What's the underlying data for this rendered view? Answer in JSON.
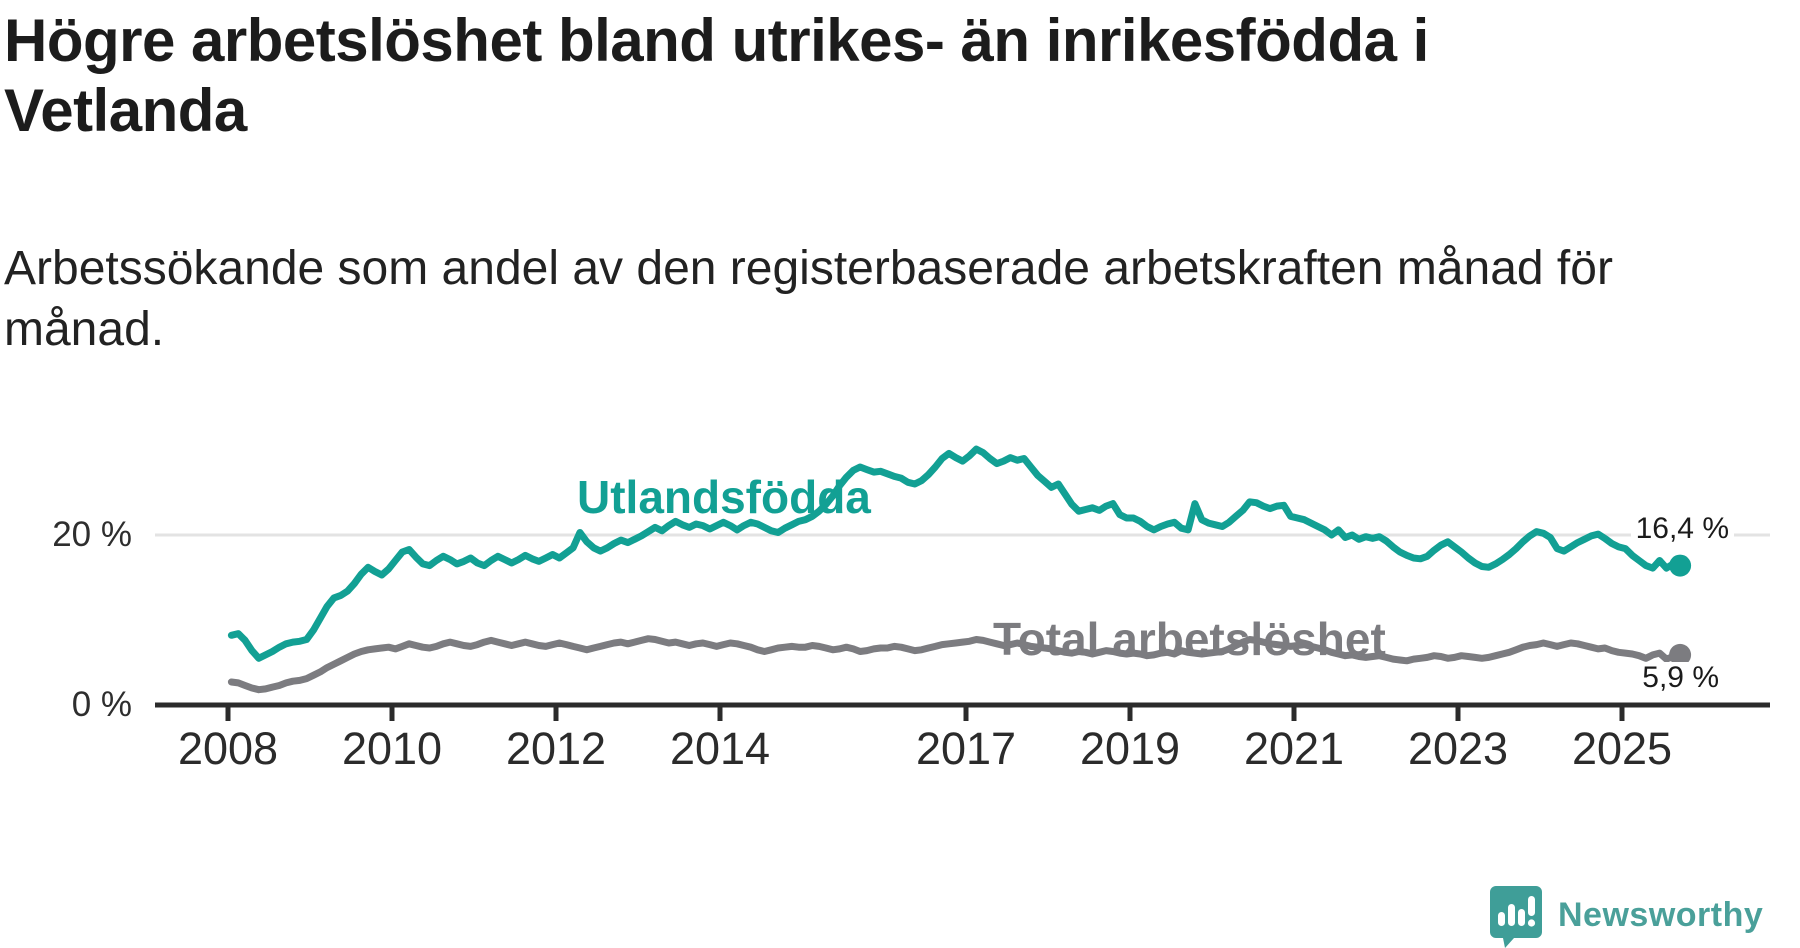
{
  "header": {
    "title_lines": [
      "Högre arbetslöshet bland utrikes- än inrikesfödda i",
      "Vetlanda"
    ],
    "subtitle_lines": [
      "Arbetssökande som andel av den registerbaserade arbetskraften månad för",
      "månad."
    ]
  },
  "colors": {
    "teal": "#12a094",
    "gray": "#7c7c80",
    "near_black": "#1c1c1c",
    "axis": "#2b2b2b",
    "gridline": "#e3e3e3",
    "logo_teal": "#4aa09a"
  },
  "branding": {
    "logo_text": "Newsworthy",
    "icon": "newsworthy-speech-bubble-bar-chart-icon"
  },
  "chart_data": {
    "type": "line",
    "title": "Högre arbetslöshet bland utrikes- än inrikesfödda i Vetlanda",
    "subtitle": "Arbetssökande som andel av den registerbaserade arbetskraften månad för månad.",
    "x_start": "2008-01",
    "x_end": "2025-09",
    "x_ticks": [
      2008,
      2010,
      2012,
      2014,
      2017,
      2019,
      2021,
      2023,
      2025
    ],
    "x_tick_labels": [
      "2008",
      "2010",
      "2012",
      "2014",
      "2017",
      "2019",
      "2021",
      "2023",
      "2025"
    ],
    "y_ticks": [
      {
        "label": "20 %",
        "value": 20
      },
      {
        "label": "0 %",
        "value": 0
      }
    ],
    "ylim": [
      0,
      33
    ],
    "grid": "horizontal gridline at 20% only",
    "legend_position": "labels next to lines",
    "series": [
      {
        "name": "Utlandsfödda",
        "color": "#12a094",
        "end_label": "16,4 %",
        "final_value": 16.4,
        "values": [
          8.2,
          8.4,
          7.6,
          6.4,
          5.5,
          5.9,
          6.3,
          6.8,
          7.2,
          7.4,
          7.5,
          7.7,
          8.8,
          10.2,
          11.6,
          12.6,
          12.9,
          13.4,
          14.3,
          15.4,
          16.2,
          15.7,
          15.3,
          16.0,
          17.0,
          18.0,
          18.3,
          17.4,
          16.6,
          16.4,
          17.0,
          17.5,
          17.1,
          16.6,
          16.9,
          17.3,
          16.7,
          16.4,
          17.0,
          17.5,
          17.1,
          16.7,
          17.1,
          17.6,
          17.2,
          16.9,
          17.3,
          17.7,
          17.3,
          17.9,
          18.5,
          20.3,
          19.2,
          18.5,
          18.1,
          18.5,
          19.0,
          19.4,
          19.1,
          19.5,
          19.9,
          20.4,
          20.9,
          20.5,
          21.1,
          21.6,
          21.2,
          20.9,
          21.3,
          21.1,
          20.7,
          21.1,
          21.5,
          21.1,
          20.6,
          21.1,
          21.5,
          21.3,
          20.9,
          20.5,
          20.3,
          20.8,
          21.2,
          21.6,
          21.8,
          22.2,
          22.8,
          23.6,
          24.6,
          25.8,
          26.8,
          27.6,
          28.0,
          27.7,
          27.4,
          27.5,
          27.2,
          26.9,
          26.7,
          26.2,
          26.0,
          26.4,
          27.1,
          28.0,
          29.0,
          29.6,
          29.1,
          28.7,
          29.3,
          30.1,
          29.7,
          29.0,
          28.4,
          28.7,
          29.1,
          28.8,
          29.0,
          28.0,
          27.0,
          26.3,
          25.6,
          26.0,
          24.8,
          23.6,
          22.8,
          23.0,
          23.2,
          22.9,
          23.4,
          23.7,
          22.4,
          22.0,
          22.0,
          21.6,
          21.0,
          20.6,
          21.0,
          21.3,
          21.5,
          20.8,
          20.6,
          23.7,
          21.8,
          21.4,
          21.2,
          21.0,
          21.5,
          22.2,
          22.9,
          23.9,
          23.8,
          23.4,
          23.1,
          23.4,
          23.5,
          22.2,
          22.0,
          21.8,
          21.4,
          21.0,
          20.6,
          20.0,
          20.6,
          19.7,
          20.0,
          19.5,
          19.8,
          19.6,
          19.8,
          19.3,
          18.6,
          18.0,
          17.6,
          17.3,
          17.2,
          17.5,
          18.2,
          18.8,
          19.2,
          18.6,
          18.0,
          17.3,
          16.7,
          16.3,
          16.2,
          16.6,
          17.1,
          17.7,
          18.4,
          19.2,
          19.9,
          20.4,
          20.2,
          19.7,
          18.4,
          18.1,
          18.6,
          19.1,
          19.5,
          19.9,
          20.1,
          19.6,
          19.0,
          18.6,
          18.4,
          17.6,
          17.0,
          16.4,
          16.1,
          17.0,
          16.1,
          16.6,
          16.4
        ]
      },
      {
        "name": "Total arbetslöshet",
        "color": "#7c7c80",
        "end_label": "5,9 %",
        "final_value": 5.9,
        "values": [
          2.7,
          2.6,
          2.3,
          2.0,
          1.8,
          1.9,
          2.1,
          2.3,
          2.6,
          2.8,
          2.9,
          3.1,
          3.5,
          3.9,
          4.4,
          4.8,
          5.2,
          5.6,
          6.0,
          6.3,
          6.5,
          6.6,
          6.7,
          6.8,
          6.6,
          6.9,
          7.2,
          7.0,
          6.8,
          6.7,
          6.9,
          7.2,
          7.4,
          7.2,
          7.0,
          6.9,
          7.1,
          7.4,
          7.6,
          7.4,
          7.2,
          7.0,
          7.2,
          7.4,
          7.2,
          7.0,
          6.9,
          7.1,
          7.3,
          7.1,
          6.9,
          6.7,
          6.5,
          6.7,
          6.9,
          7.1,
          7.3,
          7.4,
          7.2,
          7.4,
          7.6,
          7.8,
          7.7,
          7.5,
          7.3,
          7.4,
          7.2,
          7.0,
          7.2,
          7.3,
          7.1,
          6.9,
          7.1,
          7.3,
          7.2,
          7.0,
          6.8,
          6.5,
          6.3,
          6.5,
          6.7,
          6.8,
          6.9,
          6.8,
          6.8,
          7.0,
          6.9,
          6.7,
          6.5,
          6.6,
          6.8,
          6.6,
          6.3,
          6.4,
          6.6,
          6.7,
          6.7,
          6.9,
          6.8,
          6.6,
          6.4,
          6.5,
          6.7,
          6.9,
          7.1,
          7.2,
          7.3,
          7.4,
          7.5,
          7.7,
          7.6,
          7.4,
          7.2,
          7.0,
          7.1,
          7.3,
          7.1,
          6.9,
          6.8,
          6.7,
          6.6,
          6.4,
          6.2,
          6.1,
          6.3,
          6.2,
          6.0,
          6.2,
          6.4,
          6.3,
          6.1,
          6.0,
          6.1,
          6.0,
          5.8,
          5.9,
          6.1,
          6.2,
          6.0,
          6.4,
          6.2,
          6.1,
          6.0,
          6.1,
          6.2,
          6.3,
          6.6,
          7.0,
          7.4,
          7.7,
          7.6,
          7.4,
          7.2,
          7.1,
          7.0,
          6.9,
          7.0,
          7.1,
          6.9,
          6.7,
          6.5,
          6.2,
          6.0,
          5.8,
          5.9,
          5.7,
          5.6,
          5.7,
          5.8,
          5.6,
          5.4,
          5.3,
          5.2,
          5.4,
          5.5,
          5.6,
          5.8,
          5.7,
          5.5,
          5.6,
          5.8,
          5.7,
          5.6,
          5.5,
          5.6,
          5.8,
          6.0,
          6.2,
          6.5,
          6.8,
          7.0,
          7.1,
          7.3,
          7.1,
          6.9,
          7.1,
          7.3,
          7.2,
          7.0,
          6.8,
          6.6,
          6.7,
          6.4,
          6.2,
          6.1,
          6.0,
          5.8,
          5.5,
          5.9,
          6.1,
          5.4,
          5.7,
          5.9
        ]
      }
    ]
  }
}
